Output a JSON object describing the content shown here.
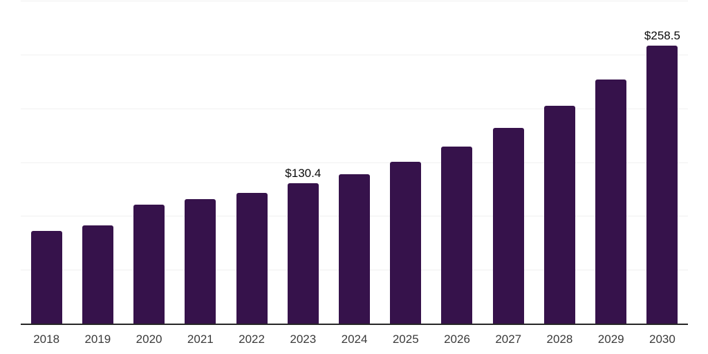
{
  "chart_data": {
    "type": "bar",
    "title": "",
    "xlabel": "",
    "ylabel": "",
    "categories": [
      "2018",
      "2019",
      "2020",
      "2021",
      "2022",
      "2023",
      "2024",
      "2025",
      "2026",
      "2027",
      "2028",
      "2029",
      "2030"
    ],
    "values": [
      86.4,
      91.0,
      110.7,
      115.8,
      121.4,
      130.4,
      139.0,
      150.2,
      164.4,
      181.7,
      202.4,
      226.9,
      258.5
    ],
    "data_labels": [
      "",
      "",
      "",
      "",
      "",
      "$130.4",
      "",
      "",
      "",
      "",
      "",
      "",
      "$258.5"
    ],
    "ylim": [
      0,
      300
    ],
    "y_gridline_values": [
      50,
      100,
      150,
      200,
      250,
      300
    ],
    "grid": "horizontal",
    "legend": "none",
    "y_tick_labels_visible": false,
    "x_tick_labels_visible": true,
    "colors": {
      "bar": "#36124b",
      "axis_line": "#262626",
      "gridline": "#f0f0f0",
      "x_tick_label": "#3a3a3a",
      "data_label": "#0a0a0a",
      "background": "#ffffff"
    }
  }
}
